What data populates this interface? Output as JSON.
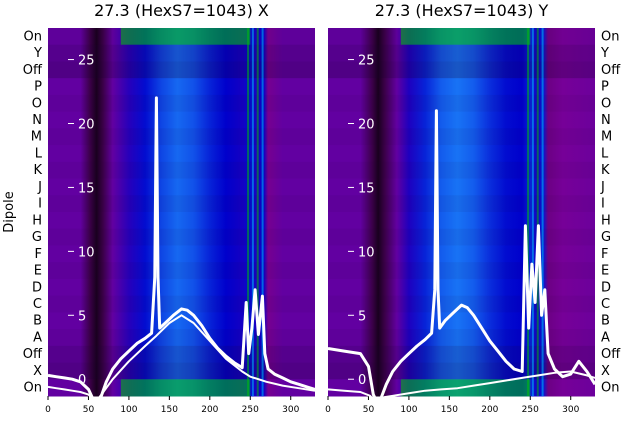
{
  "chart_data": [
    {
      "type": "heatmap",
      "title": "27.3 (HexS7=1043) X",
      "ylabel": "Dipole",
      "row_labels": [
        "On",
        "Y",
        "Off",
        "P",
        "O",
        "N",
        "M",
        "L",
        "K",
        "J",
        "I",
        "H",
        "G",
        "F",
        "E",
        "D",
        "C",
        "B",
        "A",
        "Off",
        "X",
        "On"
      ],
      "xlim": [
        0,
        330
      ],
      "x_ticks": [
        0,
        50,
        100,
        150,
        200,
        250,
        300
      ],
      "overlay_ylim": [
        -1,
        27
      ],
      "overlay_y_ticks": [
        0,
        5,
        10,
        15,
        20,
        25
      ],
      "colormap": [
        "#000000",
        "#7b0096",
        "#0000cc",
        "#1e90ff",
        "#00c800"
      ],
      "intensity_profile": [
        {
          "x": 0,
          "v": 0.3
        },
        {
          "x": 40,
          "v": 0.3
        },
        {
          "x": 52,
          "v": 0.12
        },
        {
          "x": 60,
          "v": 0.05
        },
        {
          "x": 68,
          "v": 0.12
        },
        {
          "x": 80,
          "v": 0.3
        },
        {
          "x": 100,
          "v": 0.42
        },
        {
          "x": 120,
          "v": 0.52
        },
        {
          "x": 140,
          "v": 0.62
        },
        {
          "x": 160,
          "v": 0.68
        },
        {
          "x": 180,
          "v": 0.64
        },
        {
          "x": 200,
          "v": 0.56
        },
        {
          "x": 220,
          "v": 0.5
        },
        {
          "x": 240,
          "v": 0.46
        },
        {
          "x": 250,
          "v": 0.52
        },
        {
          "x": 258,
          "v": 0.44
        },
        {
          "x": 266,
          "v": 0.5
        },
        {
          "x": 272,
          "v": 0.24
        },
        {
          "x": 290,
          "v": 0.3
        },
        {
          "x": 330,
          "v": 0.3
        }
      ],
      "series": [
        {
          "color": "#ffffff",
          "points": [
            [
              0,
              0.3
            ],
            [
              10,
              0.2
            ],
            [
              20,
              0.1
            ],
            [
              30,
              0
            ],
            [
              40,
              -0.2
            ],
            [
              50,
              -0.8
            ],
            [
              56,
              -1.6
            ],
            [
              60,
              -1.8
            ],
            [
              66,
              -1.3
            ],
            [
              72,
              -0.2
            ],
            [
              80,
              0.8
            ],
            [
              90,
              1.6
            ],
            [
              100,
              2.2
            ],
            [
              110,
              2.8
            ],
            [
              120,
              3.2
            ],
            [
              128,
              3.6
            ],
            [
              132,
              8
            ],
            [
              134,
              22
            ],
            [
              136,
              8
            ],
            [
              138,
              4
            ],
            [
              145,
              4.4
            ],
            [
              155,
              5
            ],
            [
              165,
              5.5
            ],
            [
              172,
              5.4
            ],
            [
              180,
              5
            ],
            [
              190,
              4.2
            ],
            [
              200,
              3.2
            ],
            [
              210,
              2.4
            ],
            [
              220,
              1.8
            ],
            [
              230,
              1.3
            ],
            [
              240,
              0.9
            ],
            [
              245,
              6
            ],
            [
              248,
              2
            ],
            [
              252,
              4
            ],
            [
              256,
              7
            ],
            [
              260,
              3.5
            ],
            [
              265,
              6.5
            ],
            [
              268,
              2
            ],
            [
              272,
              0.8
            ],
            [
              280,
              0.4
            ],
            [
              290,
              0.1
            ],
            [
              300,
              -0.2
            ],
            [
              310,
              -0.4
            ],
            [
              320,
              -0.6
            ],
            [
              330,
              -0.8
            ]
          ]
        },
        {
          "color": "#ffffff",
          "points": [
            [
              0,
              -0.6
            ],
            [
              10,
              -0.7
            ],
            [
              20,
              -0.8
            ],
            [
              30,
              -0.9
            ],
            [
              40,
              -1.0
            ],
            [
              50,
              -1.2
            ],
            [
              56,
              -1.6
            ],
            [
              60,
              -1.7
            ],
            [
              66,
              -1.2
            ],
            [
              80,
              0
            ],
            [
              100,
              1.4
            ],
            [
              120,
              2.6
            ],
            [
              134,
              3.4
            ],
            [
              150,
              4.4
            ],
            [
              165,
              5
            ],
            [
              180,
              4.4
            ],
            [
              200,
              3
            ],
            [
              220,
              1.6
            ],
            [
              240,
              0.6
            ],
            [
              250,
              0.2
            ],
            [
              260,
              0
            ],
            [
              270,
              -0.2
            ],
            [
              290,
              -0.5
            ],
            [
              310,
              -0.7
            ],
            [
              330,
              -0.9
            ]
          ]
        }
      ]
    },
    {
      "type": "heatmap",
      "title": "27.3 (HexS7=1043) Y",
      "row_labels": [
        "On",
        "Y",
        "Off",
        "P",
        "O",
        "N",
        "M",
        "L",
        "K",
        "J",
        "I",
        "H",
        "G",
        "F",
        "E",
        "D",
        "C",
        "B",
        "A",
        "Off",
        "X",
        "On"
      ],
      "xlim": [
        0,
        330
      ],
      "x_ticks": [
        0,
        50,
        100,
        150,
        200,
        250,
        300
      ],
      "overlay_ylim": [
        -1,
        27
      ],
      "overlay_y_ticks": [
        0,
        5,
        10,
        15,
        20,
        25
      ],
      "colormap": [
        "#000000",
        "#7b0096",
        "#0000cc",
        "#1e90ff",
        "#00c800"
      ],
      "intensity_profile": [
        {
          "x": 0,
          "v": 0.3
        },
        {
          "x": 40,
          "v": 0.3
        },
        {
          "x": 55,
          "v": 0.12
        },
        {
          "x": 62,
          "v": 0.05
        },
        {
          "x": 70,
          "v": 0.12
        },
        {
          "x": 85,
          "v": 0.3
        },
        {
          "x": 100,
          "v": 0.44
        },
        {
          "x": 120,
          "v": 0.56
        },
        {
          "x": 140,
          "v": 0.66
        },
        {
          "x": 160,
          "v": 0.7
        },
        {
          "x": 180,
          "v": 0.66
        },
        {
          "x": 200,
          "v": 0.58
        },
        {
          "x": 220,
          "v": 0.52
        },
        {
          "x": 240,
          "v": 0.5
        },
        {
          "x": 250,
          "v": 0.56
        },
        {
          "x": 258,
          "v": 0.46
        },
        {
          "x": 266,
          "v": 0.54
        },
        {
          "x": 272,
          "v": 0.22
        },
        {
          "x": 290,
          "v": 0.26
        },
        {
          "x": 330,
          "v": 0.28
        }
      ],
      "series": [
        {
          "color": "#ffffff",
          "points": [
            [
              0,
              2.4
            ],
            [
              20,
              2.2
            ],
            [
              40,
              2.0
            ],
            [
              50,
              1.0
            ],
            [
              56,
              -1.2
            ],
            [
              60,
              -1.7
            ],
            [
              66,
              -1.4
            ],
            [
              72,
              -0.4
            ],
            [
              80,
              0.6
            ],
            [
              90,
              1.4
            ],
            [
              100,
              2
            ],
            [
              110,
              2.6
            ],
            [
              120,
              3.1
            ],
            [
              128,
              3.6
            ],
            [
              132,
              7
            ],
            [
              134,
              21
            ],
            [
              136,
              7
            ],
            [
              138,
              4
            ],
            [
              145,
              4.6
            ],
            [
              155,
              5.2
            ],
            [
              165,
              5.8
            ],
            [
              172,
              5.6
            ],
            [
              180,
              5
            ],
            [
              190,
              4
            ],
            [
              200,
              3
            ],
            [
              210,
              2.2
            ],
            [
              220,
              1.4
            ],
            [
              230,
              0.8
            ],
            [
              240,
              0.6
            ],
            [
              244,
              12
            ],
            [
              248,
              4
            ],
            [
              252,
              9
            ],
            [
              256,
              6
            ],
            [
              260,
              12
            ],
            [
              264,
              5
            ],
            [
              268,
              7
            ],
            [
              272,
              2
            ],
            [
              280,
              0.8
            ],
            [
              290,
              0.2
            ],
            [
              300,
              0.4
            ],
            [
              310,
              1.4
            ],
            [
              320,
              0.6
            ],
            [
              330,
              -0.4
            ]
          ]
        },
        {
          "color": "#ffffff",
          "points": [
            [
              0,
              -0.8
            ],
            [
              20,
              -0.9
            ],
            [
              40,
              -1.0
            ],
            [
              52,
              -1.3
            ],
            [
              58,
              -1.7
            ],
            [
              62,
              -1.6
            ],
            [
              70,
              -1.4
            ],
            [
              80,
              -1.3
            ],
            [
              100,
              -1.1
            ],
            [
              120,
              -0.9
            ],
            [
              140,
              -0.8
            ],
            [
              160,
              -0.7
            ],
            [
              180,
              -0.5
            ],
            [
              200,
              -0.3
            ],
            [
              220,
              -0.1
            ],
            [
              240,
              0.1
            ],
            [
              260,
              0.3
            ],
            [
              280,
              0.5
            ],
            [
              300,
              0.6
            ],
            [
              320,
              0.3
            ],
            [
              330,
              0.1
            ]
          ]
        }
      ]
    }
  ]
}
